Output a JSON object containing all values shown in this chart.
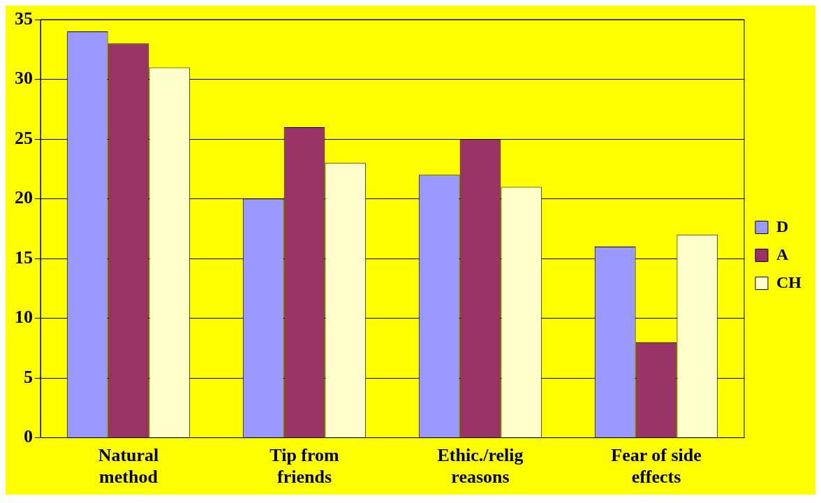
{
  "chart_data": {
    "type": "bar",
    "categories": [
      "Natural method",
      "Tip from friends",
      "Ethic./relig reasons",
      "Fear of side effects"
    ],
    "series": [
      {
        "name": "D",
        "color": "#9999ff",
        "values": [
          34,
          20,
          22,
          16
        ]
      },
      {
        "name": "A",
        "color": "#993366",
        "values": [
          33,
          26,
          25,
          8
        ]
      },
      {
        "name": "CH",
        "color": "#ffffcc",
        "values": [
          31,
          23,
          21,
          17
        ]
      }
    ],
    "ylim": [
      0,
      35
    ],
    "yticks": [
      0,
      5,
      10,
      15,
      20,
      25,
      30,
      35
    ],
    "grid": "y",
    "legend": "right"
  }
}
